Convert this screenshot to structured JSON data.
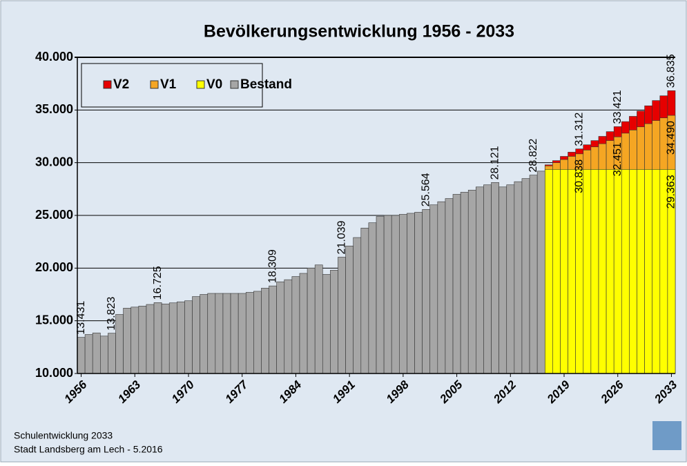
{
  "chart_data": {
    "type": "bar",
    "title": "Bevölkerungsentwicklung 1956 - 2033",
    "x": [
      1956,
      1957,
      1958,
      1959,
      1960,
      1961,
      1962,
      1963,
      1964,
      1965,
      1966,
      1967,
      1968,
      1969,
      1970,
      1971,
      1972,
      1973,
      1974,
      1975,
      1976,
      1977,
      1978,
      1979,
      1980,
      1981,
      1982,
      1983,
      1984,
      1985,
      1986,
      1987,
      1988,
      1989,
      1990,
      1991,
      1992,
      1993,
      1994,
      1995,
      1996,
      1997,
      1998,
      1999,
      2000,
      2001,
      2002,
      2003,
      2004,
      2005,
      2006,
      2007,
      2008,
      2009,
      2010,
      2011,
      2012,
      2013,
      2014,
      2015,
      2016,
      2017,
      2018,
      2019,
      2020,
      2021,
      2022,
      2023,
      2024,
      2025,
      2026,
      2027,
      2028,
      2029,
      2030,
      2031,
      2032,
      2033
    ],
    "xlim": [
      1955.5,
      2033.5
    ],
    "xticks": [
      1956,
      1963,
      1970,
      1977,
      1984,
      1991,
      1998,
      2005,
      2012,
      2019,
      2026,
      2033
    ],
    "ylim": [
      10000,
      40000
    ],
    "yticks": [
      {
        "value": 10000,
        "label": "10.000"
      },
      {
        "value": 15000,
        "label": "15.000"
      },
      {
        "value": 20000,
        "label": "20.000"
      },
      {
        "value": 25000,
        "label": "25.000"
      },
      {
        "value": 30000,
        "label": "30.000"
      },
      {
        "value": 35000,
        "label": "35.000"
      },
      {
        "value": 40000,
        "label": "40.000"
      }
    ],
    "grid": true,
    "legend": "upper left",
    "series": [
      {
        "name": "V2",
        "color": "#e60000",
        "values": [
          null,
          null,
          null,
          null,
          null,
          null,
          null,
          null,
          null,
          null,
          null,
          null,
          null,
          null,
          null,
          null,
          null,
          null,
          null,
          null,
          null,
          null,
          null,
          null,
          null,
          null,
          null,
          null,
          null,
          null,
          null,
          null,
          null,
          null,
          null,
          null,
          null,
          null,
          null,
          null,
          null,
          null,
          null,
          null,
          null,
          null,
          null,
          null,
          null,
          null,
          null,
          null,
          null,
          null,
          null,
          null,
          null,
          null,
          null,
          null,
          null,
          29800,
          30200,
          30600,
          31000,
          31312,
          31700,
          32100,
          32500,
          32950,
          33421,
          33900,
          34400,
          34900,
          35400,
          35900,
          36350,
          36835
        ],
        "value_labels": [
          null,
          null,
          null,
          null,
          null,
          null,
          null,
          null,
          null,
          null,
          null,
          null,
          null,
          null,
          null,
          null,
          null,
          null,
          null,
          null,
          null,
          null,
          null,
          null,
          null,
          null,
          null,
          null,
          null,
          null,
          null,
          null,
          null,
          null,
          null,
          null,
          null,
          null,
          null,
          null,
          null,
          null,
          null,
          null,
          null,
          null,
          null,
          null,
          null,
          null,
          null,
          null,
          null,
          null,
          null,
          null,
          null,
          null,
          null,
          null,
          null,
          null,
          null,
          null,
          null,
          "31.312",
          null,
          null,
          null,
          null,
          "33.421",
          null,
          null,
          null,
          null,
          null,
          null,
          "36.835"
        ]
      },
      {
        "name": "V1",
        "color": "#f5a623",
        "values": [
          null,
          null,
          null,
          null,
          null,
          null,
          null,
          null,
          null,
          null,
          null,
          null,
          null,
          null,
          null,
          null,
          null,
          null,
          null,
          null,
          null,
          null,
          null,
          null,
          null,
          null,
          null,
          null,
          null,
          null,
          null,
          null,
          null,
          null,
          null,
          null,
          null,
          null,
          null,
          null,
          null,
          null,
          null,
          null,
          null,
          null,
          null,
          null,
          null,
          null,
          null,
          null,
          null,
          null,
          null,
          null,
          null,
          null,
          null,
          null,
          null,
          29700,
          30000,
          30300,
          30600,
          30838,
          31200,
          31500,
          31800,
          32100,
          32451,
          32800,
          33100,
          33400,
          33700,
          34000,
          34250,
          34490
        ],
        "value_labels": [
          null,
          null,
          null,
          null,
          null,
          null,
          null,
          null,
          null,
          null,
          null,
          null,
          null,
          null,
          null,
          null,
          null,
          null,
          null,
          null,
          null,
          null,
          null,
          null,
          null,
          null,
          null,
          null,
          null,
          null,
          null,
          null,
          null,
          null,
          null,
          null,
          null,
          null,
          null,
          null,
          null,
          null,
          null,
          null,
          null,
          null,
          null,
          null,
          null,
          null,
          null,
          null,
          null,
          null,
          null,
          null,
          null,
          null,
          null,
          null,
          null,
          null,
          null,
          null,
          null,
          "30.838",
          null,
          null,
          null,
          null,
          "32.451",
          null,
          null,
          null,
          null,
          null,
          null,
          "34.490"
        ]
      },
      {
        "name": "V0",
        "color": "#ffff00",
        "values": [
          null,
          null,
          null,
          null,
          null,
          null,
          null,
          null,
          null,
          null,
          null,
          null,
          null,
          null,
          null,
          null,
          null,
          null,
          null,
          null,
          null,
          null,
          null,
          null,
          null,
          null,
          null,
          null,
          null,
          null,
          null,
          null,
          null,
          null,
          null,
          null,
          null,
          null,
          null,
          null,
          null,
          null,
          null,
          null,
          null,
          null,
          null,
          null,
          null,
          null,
          null,
          null,
          null,
          null,
          null,
          null,
          null,
          null,
          null,
          null,
          null,
          29363,
          29363,
          29363,
          29363,
          29363,
          29363,
          29363,
          29363,
          29363,
          29363,
          29363,
          29363,
          29363,
          29363,
          29363,
          29363,
          29363
        ],
        "value_labels": [
          null,
          null,
          null,
          null,
          null,
          null,
          null,
          null,
          null,
          null,
          null,
          null,
          null,
          null,
          null,
          null,
          null,
          null,
          null,
          null,
          null,
          null,
          null,
          null,
          null,
          null,
          null,
          null,
          null,
          null,
          null,
          null,
          null,
          null,
          null,
          null,
          null,
          null,
          null,
          null,
          null,
          null,
          null,
          null,
          null,
          null,
          null,
          null,
          null,
          null,
          null,
          null,
          null,
          null,
          null,
          null,
          null,
          null,
          null,
          null,
          null,
          null,
          null,
          null,
          null,
          null,
          null,
          null,
          null,
          null,
          null,
          null,
          null,
          null,
          null,
          null,
          null,
          "29.363"
        ]
      },
      {
        "name": "Bestand",
        "color": "#a6a6a6",
        "values": [
          13431,
          13700,
          13850,
          13550,
          13823,
          15600,
          16200,
          16300,
          16400,
          16550,
          16725,
          16600,
          16700,
          16800,
          16900,
          17300,
          17500,
          17600,
          17600,
          17600,
          17600,
          17600,
          17700,
          17800,
          18100,
          18309,
          18700,
          18900,
          19200,
          19500,
          20000,
          20300,
          19400,
          19800,
          21039,
          22100,
          22900,
          23800,
          24300,
          24900,
          25000,
          25000,
          25100,
          25200,
          25300,
          25564,
          26000,
          26300,
          26600,
          27000,
          27200,
          27400,
          27700,
          27900,
          28121,
          27700,
          27900,
          28200,
          28500,
          28822,
          29200,
          null,
          null,
          null,
          null,
          null,
          null,
          null,
          null,
          null,
          null,
          null,
          null,
          null,
          null,
          null,
          null,
          null
        ],
        "value_labels": [
          "13.431",
          null,
          null,
          null,
          "13.823",
          null,
          null,
          null,
          null,
          null,
          "16.725",
          null,
          null,
          null,
          null,
          null,
          null,
          null,
          null,
          null,
          null,
          null,
          null,
          null,
          null,
          "18.309",
          null,
          null,
          null,
          null,
          null,
          null,
          null,
          null,
          "21.039",
          null,
          null,
          null,
          null,
          null,
          null,
          null,
          null,
          null,
          null,
          "25.564",
          null,
          null,
          null,
          null,
          null,
          null,
          null,
          null,
          "28.121",
          null,
          null,
          null,
          null,
          "28.822",
          null,
          null,
          null,
          null,
          null,
          null,
          null,
          null,
          null,
          null,
          null,
          null,
          null,
          null,
          null,
          null,
          null,
          null
        ]
      }
    ]
  },
  "footer": {
    "line1": "Schulentwicklung 2033",
    "line2": "Stadt Landsberg am Lech - 5.2016"
  }
}
